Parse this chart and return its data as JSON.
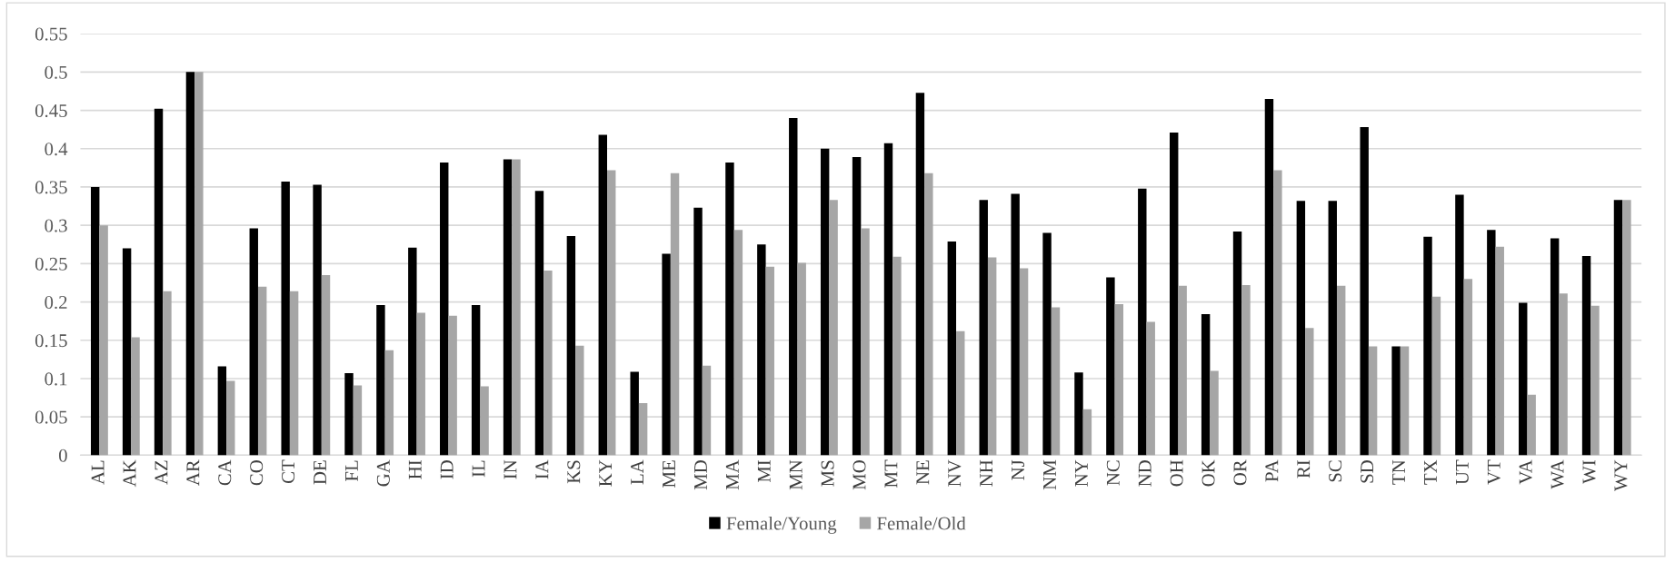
{
  "chart_data": {
    "type": "bar",
    "categories": [
      "AL",
      "AK",
      "AZ",
      "AR",
      "CA",
      "CO",
      "CT",
      "DE",
      "FL",
      "GA",
      "HI",
      "ID",
      "IL",
      "IN",
      "IA",
      "KS",
      "KY",
      "LA",
      "ME",
      "MD",
      "MA",
      "MI",
      "MN",
      "MS",
      "MO",
      "MT",
      "NE",
      "NV",
      "NH",
      "NJ",
      "NM",
      "NY",
      "NC",
      "ND",
      "OH",
      "OK",
      "OR",
      "PA",
      "RI",
      "SC",
      "SD",
      "TN",
      "TX",
      "UT",
      "VT",
      "VA",
      "WA",
      "WI",
      "WY"
    ],
    "series": [
      {
        "name": "Female/Young",
        "color": "#000000",
        "values": [
          0.35,
          0.27,
          0.452,
          0.5,
          0.116,
          0.296,
          0.357,
          0.353,
          0.107,
          0.196,
          0.271,
          0.382,
          0.196,
          0.386,
          0.345,
          0.286,
          0.418,
          0.109,
          0.263,
          0.323,
          0.382,
          0.275,
          0.44,
          0.4,
          0.389,
          0.407,
          0.473,
          0.279,
          0.333,
          0.341,
          0.29,
          0.108,
          0.232,
          0.348,
          0.421,
          0.184,
          0.292,
          0.465,
          0.332,
          0.332,
          0.428,
          0.142,
          0.285,
          0.34,
          0.294,
          0.199,
          0.283,
          0.26,
          0.333
        ]
      },
      {
        "name": "Female/Old",
        "color": "#a6a6a6",
        "values": [
          0.3,
          0.154,
          0.214,
          0.5,
          0.097,
          0.22,
          0.214,
          0.235,
          0.091,
          0.137,
          0.186,
          0.182,
          0.09,
          0.386,
          0.241,
          0.143,
          0.372,
          0.068,
          0.368,
          0.117,
          0.294,
          0.246,
          0.251,
          0.333,
          0.296,
          0.259,
          0.368,
          0.162,
          0.258,
          0.244,
          0.193,
          0.06,
          0.197,
          0.174,
          0.221,
          0.11,
          0.222,
          0.372,
          0.166,
          0.221,
          0.142,
          0.142,
          0.207,
          0.23,
          0.272,
          0.079,
          0.211,
          0.195,
          0.333
        ]
      }
    ],
    "ylim": [
      0,
      0.55
    ],
    "yticks": [
      0,
      0.05,
      0.1,
      0.15,
      0.2,
      0.25,
      0.3,
      0.35,
      0.4,
      0.45,
      0.5,
      0.55
    ],
    "grid": "y",
    "legend": "bottom"
  }
}
